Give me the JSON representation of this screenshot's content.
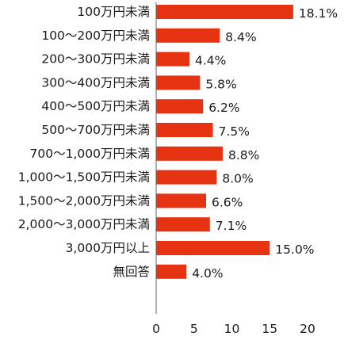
{
  "chart_data": {
    "type": "bar",
    "orientation": "horizontal",
    "title": "",
    "xlabel": "",
    "ylabel": "",
    "categories": [
      "100万円未満",
      "100～200万円未満",
      "200～300万円未満",
      "300～400万円未満",
      "400～500万円未満",
      "500～700万円未満",
      "700～1,000万円未満",
      "1,000～1,500万円未満",
      "1,500～2,000万円未満",
      "2,000～3,000万円未満",
      "3,000万円以上",
      "無回答"
    ],
    "values": [
      18.1,
      8.4,
      4.4,
      5.8,
      6.2,
      7.5,
      8.8,
      8.0,
      6.6,
      7.1,
      15.0,
      4.0
    ],
    "value_labels": [
      "18.1%",
      "8.4%",
      "4.4%",
      "5.8%",
      "6.2%",
      "7.5%",
      "8.8%",
      "8.0%",
      "6.6%",
      "7.1%",
      "15.0%",
      "4.0%"
    ],
    "xlim": [
      0,
      20
    ],
    "x_ticks": [
      0,
      5,
      10,
      15,
      20
    ],
    "x_tick_labels": [
      "0",
      "5",
      "10",
      "15",
      "20"
    ],
    "grid": false,
    "legend": "none",
    "bar_color": "#e63312",
    "axis_color": "#666666",
    "text_color": "#1a1a1a"
  }
}
